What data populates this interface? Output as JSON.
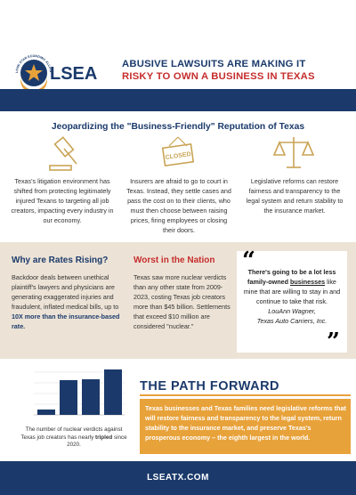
{
  "header": {
    "logo_text": "LSEA",
    "logo_arc": "LONE STAR ECONOMIC ALLIANCE",
    "title_line1": "ABUSIVE LAWSUITS ARE MAKING IT",
    "title_line2": "RISKY TO OWN A BUSINESS IN TEXAS"
  },
  "intro": {
    "heading": "Jeopardizing the \"Business-Friendly\" Reputation of Texas",
    "icon_sign": "CLOSED",
    "columns": [
      "Texas's litigation environment has shifted from protecting legitimately injured Texans to targeting all job creators, impacting every industry in our economy.",
      "Insurers are afraid to go to court in Texas. Instead, they settle cases and pass the cost on to their clients, who must then choose between raising prices, firing employees or closing their doors.",
      "Legislative reforms can restore fairness and transparency to the legal system and return stability to the insurance market."
    ]
  },
  "rates": {
    "heading": "Why are Rates Rising?",
    "text": "Backdoor deals between unethical plaintiff's lawyers and physicians are generating exaggerated injuries and fraudulent, inflated medical bills, up to ",
    "text_bold": "10X more than the insurance-based rate."
  },
  "worst": {
    "heading": "Worst in the Nation",
    "text": "Texas saw more nuclear verdicts than any other state from 2009-2023, costing Texas job creators more than $45 billion. Settlements that exceed $10 million are considered \"nuclear.\""
  },
  "quote": {
    "bold": "There's going to be a lot less family-owned ",
    "bold_underline": "businesses",
    "rest": " like mine that are willing to stay in and continue to take that risk.",
    "author": "LouAnn Wagner,",
    "company": "Texas Auto Carriers, Inc."
  },
  "chart_caption": {
    "before": "The number of nuclear verdicts against Texas job creators has nearly ",
    "bold": "tripled",
    "after": " since 2020."
  },
  "path_forward": {
    "heading": "THE PATH FORWARD",
    "text": "Texas businesses and Texas families need legislative reforms that will restore fairness and transparency to the legal system, return stability to the insurance market, and preserve Texas's prosperous economy – the eighth largest in the world."
  },
  "footer": {
    "url": "LSEATX.COM"
  }
}
